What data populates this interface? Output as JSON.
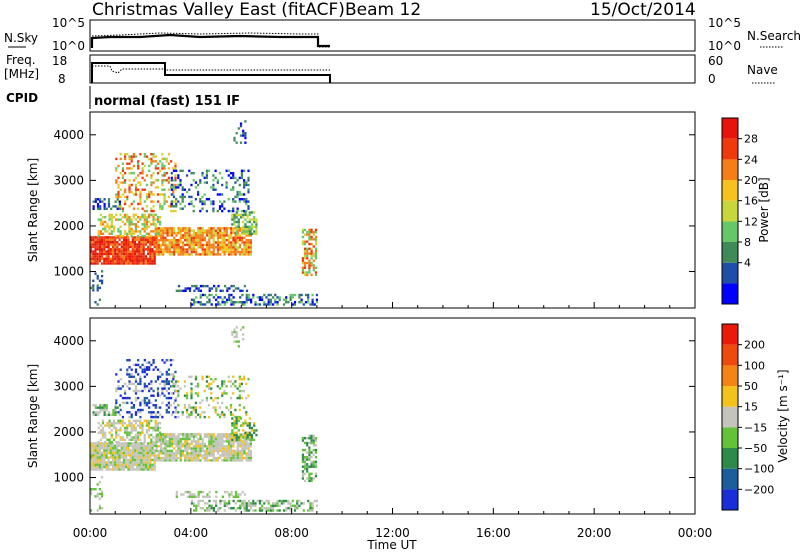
{
  "header": {
    "station": "Christmas Valley East (fitACF)",
    "beam": "Beam 12",
    "date": "15/Oct/2014"
  },
  "param_panels": {
    "nsky_label": "N.Sky",
    "nsky_ticks": [
      "10^5",
      "10^0"
    ],
    "nsearch_label": "N.Search",
    "nsearch_ticks": [
      "10^5",
      "10^0"
    ],
    "freq_label": "Freq.",
    "freq_unit": "[MHz]",
    "freq_ticks": [
      "18",
      "8"
    ],
    "nave_label": "Nave",
    "nave_ticks": [
      "60",
      "0"
    ],
    "cpid_label": "CPID",
    "cpid_text": "normal (fast) 151 IF"
  },
  "chart_data": [
    {
      "type": "heatmap",
      "name": "power",
      "ylabel": "Slant Range [km]",
      "xlabel": "",
      "xlim": [
        0,
        24
      ],
      "ylim": [
        200,
        4500
      ],
      "yticks": [
        "4000",
        "3000",
        "2000",
        "1000"
      ],
      "colorbar": {
        "label": "Power [dB]",
        "ticks": [
          "28",
          "24",
          "20",
          "16",
          "12",
          "8",
          "4"
        ],
        "colors": [
          "#0000ff",
          "#1f4ea8",
          "#3f8a58",
          "#66c66a",
          "#c7d63a",
          "#f7c120",
          "#f57f16",
          "#ef3a0e",
          "#e6140a"
        ]
      },
      "data_ends_hour": 9.0
    },
    {
      "type": "heatmap",
      "name": "velocity",
      "ylabel": "Slant Range [km]",
      "xlabel": "Time UT",
      "xlim": [
        0,
        24
      ],
      "ylim": [
        200,
        4500
      ],
      "yticks": [
        "4000",
        "3000",
        "2000",
        "1000"
      ],
      "xticks": [
        "00:00",
        "04:00",
        "08:00",
        "12:00",
        "16:00",
        "20:00",
        "00:00"
      ],
      "colorbar": {
        "label": "Velocity [m s⁻¹]",
        "ticks": [
          "200",
          "100",
          "50",
          "15",
          "−15",
          "−50",
          "−100",
          "−200"
        ],
        "colors": [
          "#1a2ed8",
          "#1a5e9c",
          "#2e8a4a",
          "#64c23a",
          "#c4c4bc",
          "#f4c21c",
          "#f48414",
          "#ef4a0e",
          "#ea1a0a"
        ]
      },
      "data_ends_hour": 9.0
    }
  ],
  "colors": {
    "frame": "#000000",
    "no_data": "#ffffff"
  }
}
